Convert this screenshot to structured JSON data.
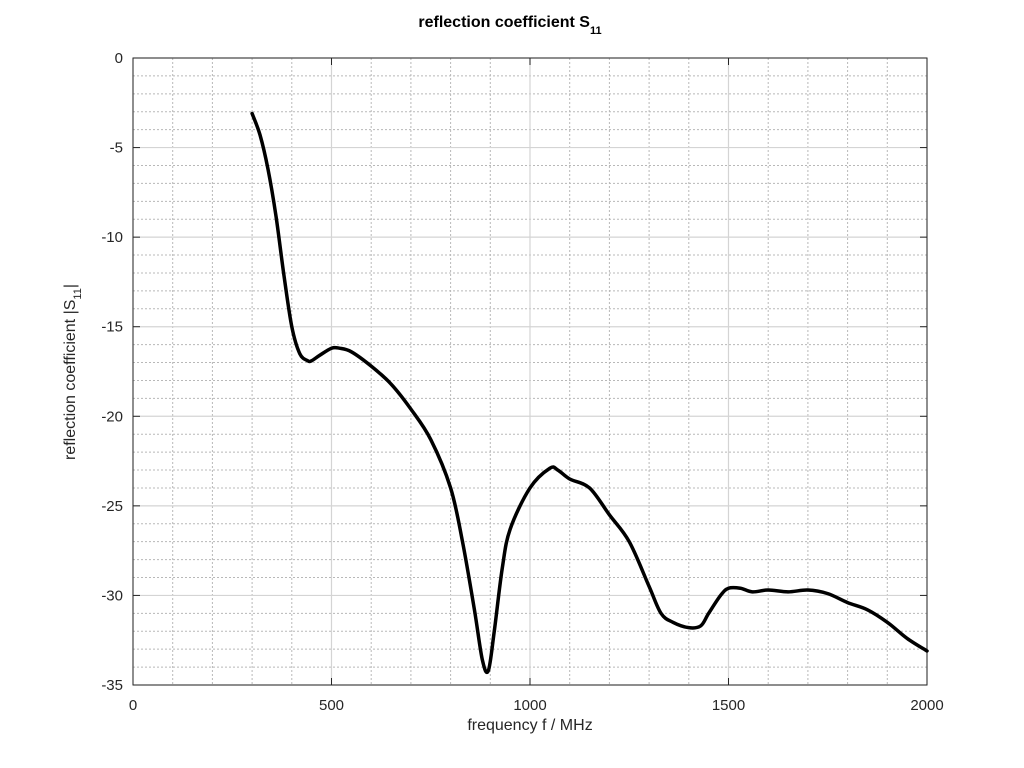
{
  "chart_data": {
    "type": "line",
    "title": {
      "text": "reflection coefficient S",
      "subscript": "11"
    },
    "xlabel": "frequency f / MHz",
    "ylabel": {
      "prefix": "reflection coefficient |S",
      "subscript": "11",
      "suffix": "|"
    },
    "xlim": [
      0,
      2000
    ],
    "ylim": [
      -35,
      0
    ],
    "xticks": [
      0,
      500,
      1000,
      1500,
      2000
    ],
    "yticks": [
      0,
      -5,
      -10,
      -15,
      -20,
      -25,
      -30,
      -35
    ],
    "x_minor_step": 100,
    "y_minor_step": 1,
    "grid": true,
    "line_color": "#000000",
    "major_grid_color": "#d4d4d4",
    "minor_grid_color": "#b8b8b8",
    "series": [
      {
        "x": [
          300,
          320,
          340,
          360,
          380,
          400,
          420,
          440,
          450,
          470,
          500,
          520,
          550,
          600,
          650,
          700,
          750,
          800,
          830,
          860,
          880,
          895,
          910,
          930,
          950,
          1000,
          1050,
          1070,
          1100,
          1150,
          1200,
          1250,
          1300,
          1330,
          1360,
          1400,
          1430,
          1450,
          1480,
          1500,
          1530,
          1560,
          1600,
          1650,
          1700,
          1750,
          1800,
          1850,
          1900,
          1950,
          2000
        ],
        "y": [
          -3.1,
          -4.3,
          -6.2,
          -8.8,
          -12.1,
          -15.0,
          -16.5,
          -16.9,
          -16.9,
          -16.6,
          -16.2,
          -16.2,
          -16.4,
          -17.2,
          -18.2,
          -19.6,
          -21.3,
          -24.0,
          -27.0,
          -30.8,
          -33.6,
          -34.2,
          -32.0,
          -28.5,
          -26.3,
          -24.0,
          -22.9,
          -23.0,
          -23.5,
          -24.0,
          -25.5,
          -27.0,
          -29.5,
          -31.0,
          -31.5,
          -31.8,
          -31.7,
          -31.0,
          -30.0,
          -29.6,
          -29.6,
          -29.8,
          -29.7,
          -29.8,
          -29.7,
          -29.9,
          -30.4,
          -30.8,
          -31.5,
          -32.4,
          -33.1
        ]
      }
    ]
  }
}
